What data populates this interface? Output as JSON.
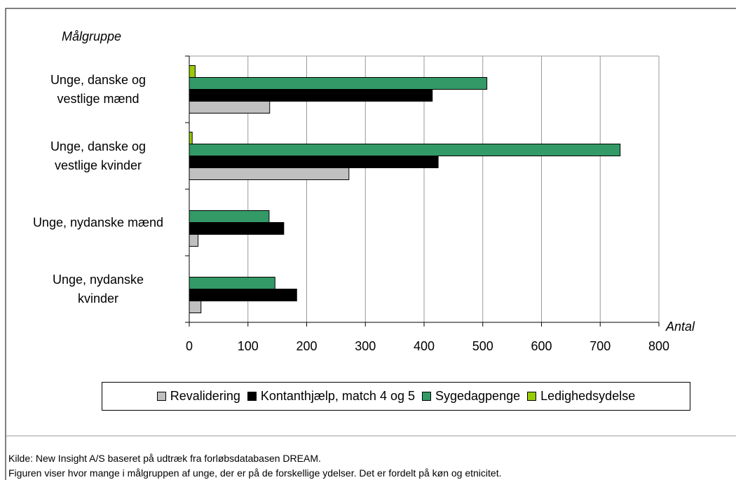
{
  "chart_data": {
    "type": "barh",
    "y_axis_label": "Målgruppe",
    "x_axis_label": "Antal",
    "categories": [
      "Unge, danske og\nvestlige mænd",
      "Unge, danske og\nvestlige kvinder",
      "Unge, nydanske mænd",
      "Unge, nydanske\nkvinder"
    ],
    "series": [
      {
        "name": "Revalidering",
        "color": "#c0c0c0",
        "values": [
          137,
          272,
          15,
          20
        ]
      },
      {
        "name": "Kontanthjælp, match 4 og 5",
        "color": "#000000",
        "values": [
          414,
          424,
          161,
          183
        ]
      },
      {
        "name": "Sygedagpenge",
        "color": "#339966",
        "values": [
          507,
          734,
          136,
          146
        ]
      },
      {
        "name": "Ledighedsydelse",
        "color": "#99cc00",
        "values": [
          10,
          5,
          0,
          0
        ]
      }
    ],
    "xlim": [
      0,
      800
    ],
    "xticks": [
      0,
      100,
      200,
      300,
      400,
      500,
      600,
      700,
      800
    ],
    "grid": true,
    "legend": "bottom",
    "source": "Kilde: New Insight A/S baseret på udtræk fra forløbsdatabasen DREAM.",
    "note": "Figuren viser hvor mange i målgruppen af unge, der er på de forskellige ydelser. Det er fordelt på køn og etnicitet."
  }
}
